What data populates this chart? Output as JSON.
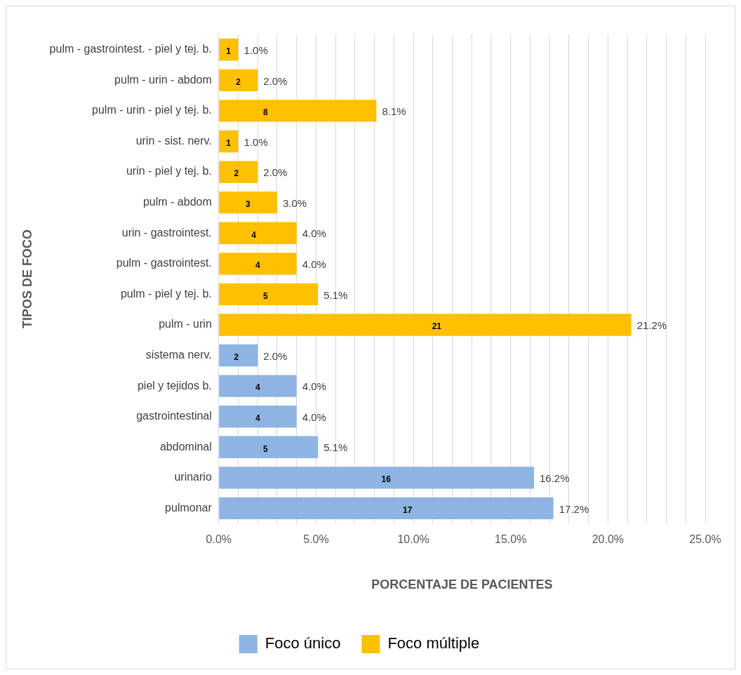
{
  "chart_data": {
    "type": "bar",
    "orientation": "horizontal",
    "xlabel": "PORCENTAJE DE PACIENTES",
    "ylabel": "TIPOS DE FOCO",
    "categories": [
      "pulm - gastrointest. - piel y tej. b.",
      "pulm - urin - abdom",
      "pulm - urin - piel y tej. b.",
      "urin - sist. nerv.",
      "urin - piel y tej. b.",
      "pulm - abdom",
      "urin - gastrointest.",
      "pulm - gastrointest.",
      "pulm - piel y tej. b.",
      "pulm - urin",
      "sistema nerv.",
      "piel y tejidos b.",
      "gastrointestinal",
      "abdominal",
      "urinario",
      "pulmonar"
    ],
    "series": [
      {
        "name": "Foco único",
        "color": "#8eb4e3",
        "values": [
          null,
          null,
          null,
          null,
          null,
          null,
          null,
          null,
          null,
          null,
          2.0,
          4.0,
          4.0,
          5.1,
          16.2,
          17.2
        ],
        "value_labels": [
          null,
          null,
          null,
          null,
          null,
          null,
          null,
          null,
          null,
          null,
          "2.0%",
          "4.0%",
          "4.0%",
          "5.1%",
          "16.2%",
          "17.2%"
        ]
      },
      {
        "name": "Foco múltiple",
        "color": "#ffc000",
        "values": [
          1.0,
          2.0,
          8.1,
          1.0,
          2.0,
          3.0,
          4.0,
          4.0,
          5.1,
          21.2,
          null,
          null,
          null,
          null,
          null,
          null
        ],
        "value_labels": [
          "1.0%",
          "2.0%",
          "8.1%",
          "1.0%",
          "2.0%",
          "3.0%",
          "4.0%",
          "4.0%",
          "5.1%",
          "21.2%",
          null,
          null,
          null,
          null,
          null,
          null
        ]
      }
    ],
    "annotations": [
      {
        "text": "1",
        "x": 0.5,
        "y": "pulm - gastrointest. - piel y tej. b."
      },
      {
        "text": "2",
        "x": 1.0,
        "y": "pulm - urin - abdom"
      },
      {
        "text": "8",
        "x": 2.4,
        "y": "pulm - urin - piel y tej. b."
      },
      {
        "text": "1",
        "x": 0.5,
        "y": "urin - sist. nerv."
      },
      {
        "text": "2",
        "x": 0.9,
        "y": "urin - piel y tej. b."
      },
      {
        "text": "3",
        "x": 1.5,
        "y": "pulm - abdom"
      },
      {
        "text": "4",
        "x": 1.8,
        "y": "urin - gastrointest."
      },
      {
        "text": "4",
        "x": 2.0,
        "y": "pulm - gastrointest."
      },
      {
        "text": "5",
        "x": 2.4,
        "y": "pulm - piel y tej. b."
      },
      {
        "text": "21",
        "x": 11.2,
        "y": "pulm - urin"
      },
      {
        "text": "2",
        "x": 0.9,
        "y": "sistema nerv."
      },
      {
        "text": "4",
        "x": 2.0,
        "y": "piel y tejidos b."
      },
      {
        "text": "4",
        "x": 2.0,
        "y": "gastrointestinal"
      },
      {
        "text": "5",
        "x": 2.4,
        "y": "abdominal"
      },
      {
        "text": "16",
        "x": 8.6,
        "y": "urinario"
      },
      {
        "text": "17",
        "x": 9.7,
        "y": "pulmonar"
      }
    ],
    "xlim": [
      0,
      25
    ],
    "xticks": [
      {
        "value": 0,
        "label": "0.0%"
      },
      {
        "value": 1,
        "label": null
      },
      {
        "value": 2,
        "label": null
      },
      {
        "value": 3,
        "label": null
      },
      {
        "value": 4,
        "label": null
      },
      {
        "value": 5,
        "label": "5.0%"
      },
      {
        "value": 6,
        "label": null
      },
      {
        "value": 7,
        "label": null
      },
      {
        "value": 8,
        "label": null
      },
      {
        "value": 9,
        "label": null
      },
      {
        "value": 10,
        "label": "10.0%"
      },
      {
        "value": 11,
        "label": null
      },
      {
        "value": 12,
        "label": null
      },
      {
        "value": 13,
        "label": null
      },
      {
        "value": 14,
        "label": null
      },
      {
        "value": 15,
        "label": "15.0%"
      },
      {
        "value": 16,
        "label": null
      },
      {
        "value": 17,
        "label": null
      },
      {
        "value": 18,
        "label": null
      },
      {
        "value": 19,
        "label": null
      },
      {
        "value": 20,
        "label": "20.0%"
      },
      {
        "value": 21,
        "label": null
      },
      {
        "value": 22,
        "label": null
      },
      {
        "value": 23,
        "label": null
      },
      {
        "value": 24,
        "label": null
      },
      {
        "value": 25,
        "label": "25.0%"
      }
    ],
    "grid": "x",
    "legend": "bottom"
  }
}
